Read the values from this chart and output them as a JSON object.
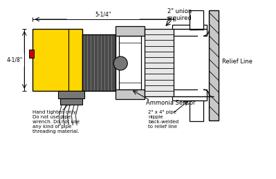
{
  "bg_color": "#ffffff",
  "colors": {
    "yellow": "#FFD700",
    "dark_gray": "#4a4a4a",
    "mid_gray": "#777777",
    "light_gray": "#c8c8c8",
    "very_light_gray": "#e8e8e8",
    "red": "#cc0000",
    "black": "#000000",
    "white": "#ffffff"
  },
  "annotations": {
    "union_label": "2\" union\nrequired",
    "relief_line": "Relief Line",
    "ammonia_sensor": "Ammonia Sensor",
    "dim_h": "5-1/4\"",
    "dim_v": "4-1/8\"",
    "hand_tighten": "Hand tighten only.\nDo not use pipe\nwrench. Do not use\nany kind of pipe\nthreading material.",
    "pipe_nipple": "2\" x 4\" pipe\nnipple\nback-welded\nto relief line"
  }
}
